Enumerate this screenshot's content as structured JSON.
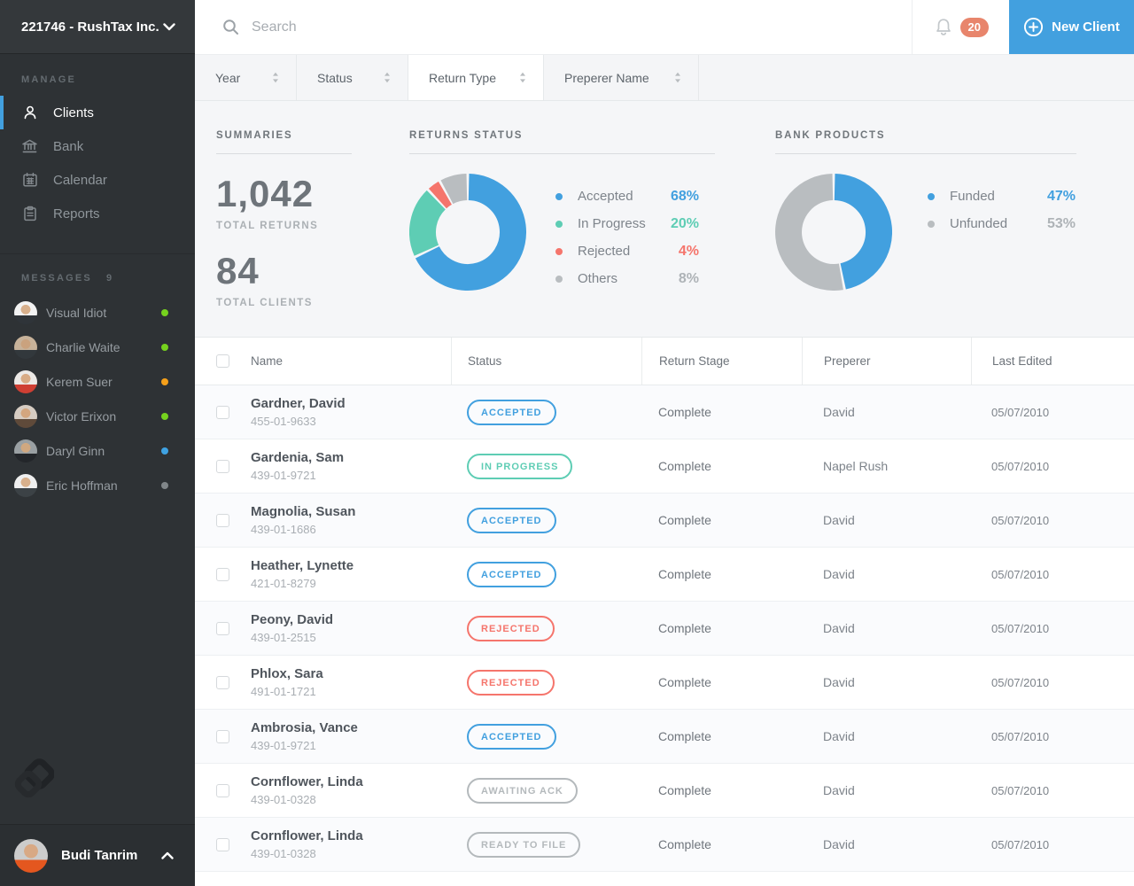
{
  "colors": {
    "accent_blue": "#42a0df",
    "teal": "#5ecdb4",
    "red": "#f5756c",
    "neutral_gray": "#b9bdc0",
    "badge_orange": "#e8856c",
    "value_gray": "#aeb3b7"
  },
  "sidebar": {
    "account": "221746 - RushTax Inc.",
    "manage": {
      "label": "MANAGE",
      "items": [
        {
          "label": "Clients",
          "icon": "clients-icon",
          "active": true
        },
        {
          "label": "Bank",
          "icon": "bank-icon",
          "active": false
        },
        {
          "label": "Calendar",
          "icon": "calendar-icon",
          "active": false
        },
        {
          "label": "Reports",
          "icon": "reports-icon",
          "active": false
        }
      ]
    },
    "messages": {
      "label": "MESSAGES",
      "count": "9",
      "items": [
        {
          "name": "Visual Idiot",
          "presence": "#76d21e",
          "avatar": {
            "bg": "#f3f3f3",
            "skin": "#d8b08c",
            "shirt": "#2f3439"
          }
        },
        {
          "name": "Charlie Waite",
          "presence": "#76d21e",
          "avatar": {
            "bg": "#c7b29a",
            "skin": "#caa27e",
            "shirt": "#32383c"
          }
        },
        {
          "name": "Kerem Suer",
          "presence": "#f5a01a",
          "avatar": {
            "bg": "#ece9e6",
            "skin": "#d8ab85",
            "shirt": "#cf3f33"
          }
        },
        {
          "name": "Victor Erixon",
          "presence": "#76d21e",
          "avatar": {
            "bg": "#d6ccc2",
            "skin": "#d3a67f",
            "shirt": "#5f4a3a"
          }
        },
        {
          "name": "Daryl Ginn",
          "presence": "#3fa2e2",
          "avatar": {
            "bg": "#9aa0a3",
            "skin": "#d0a880",
            "shirt": "#23262a"
          }
        },
        {
          "name": "Eric Hoffman",
          "presence": "#808689",
          "avatar": {
            "bg": "#efefef",
            "skin": "#d8b08c",
            "shirt": "#3c4246"
          }
        }
      ]
    },
    "user": {
      "name": "Budi Tanrim",
      "avatar": {
        "bg": "#cccccc",
        "skin": "#d8a985",
        "shirt": "#e4571f"
      }
    }
  },
  "topbar": {
    "search_placeholder": "Search",
    "notifications_count": "20",
    "new_client_label": "New Client"
  },
  "filters": [
    {
      "label": "Year",
      "active": false
    },
    {
      "label": "Status",
      "active": false
    },
    {
      "label": "Return Type",
      "active": true
    },
    {
      "label": "Preperer Name",
      "active": false
    }
  ],
  "summaries": {
    "heading": "SUMMARIES",
    "stats": [
      {
        "value": "1,042",
        "label": "TOTAL RETURNS"
      },
      {
        "value": "84",
        "label": "TOTAL CLIENTS"
      }
    ]
  },
  "chart_data": [
    {
      "type": "pie",
      "donut": true,
      "title": "RETURNS STATUS",
      "labels": [
        "Accepted",
        "In Progress",
        "Rejected",
        "Others"
      ],
      "values": [
        68,
        20,
        4,
        8
      ],
      "display_values": [
        "68%",
        "20%",
        "4%",
        "8%"
      ],
      "colors": [
        "#42a0df",
        "#5ecdb4",
        "#f5756c",
        "#b9bdc0"
      ],
      "value_colors": [
        "#42a0df",
        "#5ecdb4",
        "#f5756c",
        "#aeb3b7"
      ],
      "legend_position": "right",
      "start_angle_deg": 0,
      "direction": "clockwise"
    },
    {
      "type": "pie",
      "donut": true,
      "title": "BANK PRODUCTS",
      "labels": [
        "Funded",
        "Unfunded"
      ],
      "values": [
        47,
        53
      ],
      "display_values": [
        "47%",
        "53%"
      ],
      "colors": [
        "#42a0df",
        "#b9bdc0"
      ],
      "value_colors": [
        "#42a0df",
        "#aeb3b7"
      ],
      "legend_position": "right",
      "start_angle_deg": 0,
      "direction": "clockwise"
    }
  ],
  "table": {
    "columns": [
      "Name",
      "Status",
      "Return Stage",
      "Preperer",
      "Last Edited"
    ],
    "rows": [
      {
        "name": "Gardner, David",
        "ssn": "455-01-9633",
        "status": "ACCEPTED",
        "status_color": "#42a0df",
        "stage": "Complete",
        "preperer": "David",
        "last_edited": "05/07/2010"
      },
      {
        "name": "Gardenia, Sam",
        "ssn": "439-01-9721",
        "status": "IN PROGRESS",
        "status_color": "#5ecdb4",
        "stage": "Complete",
        "preperer": "Napel Rush",
        "last_edited": "05/07/2010"
      },
      {
        "name": "Magnolia, Susan",
        "ssn": "439-01-1686",
        "status": "ACCEPTED",
        "status_color": "#42a0df",
        "stage": "Complete",
        "preperer": "David",
        "last_edited": "05/07/2010"
      },
      {
        "name": "Heather, Lynette",
        "ssn": "421-01-8279",
        "status": "ACCEPTED",
        "status_color": "#42a0df",
        "stage": "Complete",
        "preperer": "David",
        "last_edited": "05/07/2010"
      },
      {
        "name": "Peony, David",
        "ssn": "439-01-2515",
        "status": "REJECTED",
        "status_color": "#f5756c",
        "stage": "Complete",
        "preperer": "David",
        "last_edited": "05/07/2010"
      },
      {
        "name": "Phlox, Sara",
        "ssn": "491-01-1721",
        "status": "REJECTED",
        "status_color": "#f5756c",
        "stage": "Complete",
        "preperer": "David",
        "last_edited": "05/07/2010"
      },
      {
        "name": "Ambrosia, Vance",
        "ssn": "439-01-9721",
        "status": "ACCEPTED",
        "status_color": "#42a0df",
        "stage": "Complete",
        "preperer": "David",
        "last_edited": "05/07/2010"
      },
      {
        "name": "Cornflower, Linda",
        "ssn": "439-01-0328",
        "status": "AWAITING ACK",
        "status_color": "#b4b9bc",
        "stage": "Complete",
        "preperer": "David",
        "last_edited": "05/07/2010"
      },
      {
        "name": "Cornflower, Linda",
        "ssn": "439-01-0328",
        "status": "READY TO FILE",
        "status_color": "#b4b9bc",
        "stage": "Complete",
        "preperer": "David",
        "last_edited": "05/07/2010"
      }
    ]
  }
}
